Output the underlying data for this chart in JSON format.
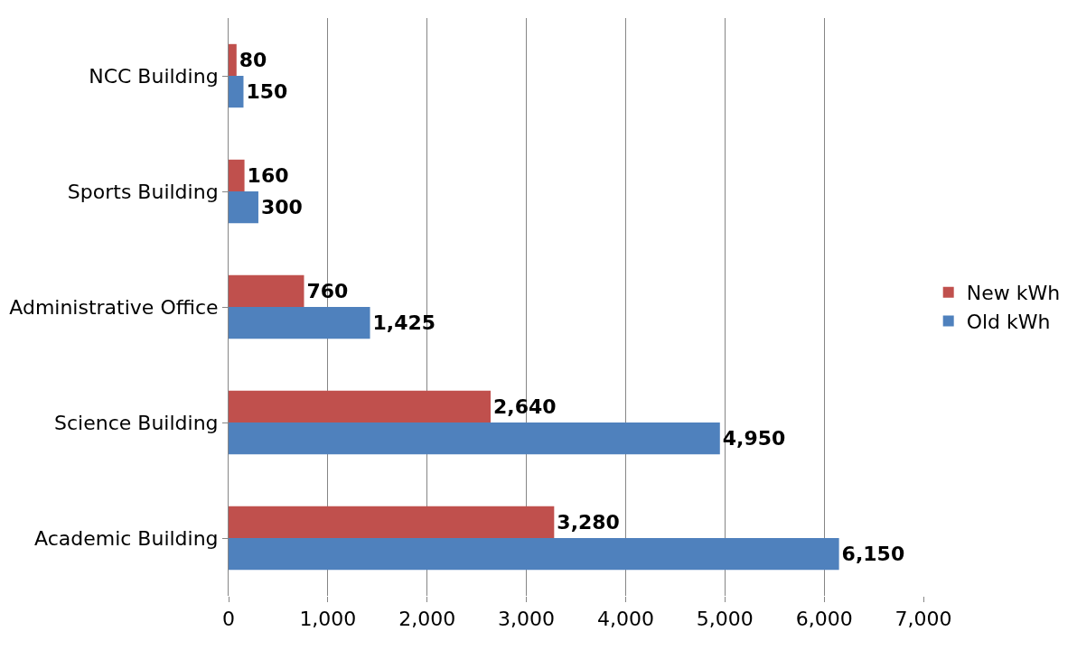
{
  "chart_data": {
    "type": "bar",
    "orientation": "horizontal",
    "categories": [
      "NCC Building",
      "Sports Building",
      "Administrative Office",
      "Science Building",
      "Academic Building"
    ],
    "series": [
      {
        "name": "New kWh",
        "color": "#c0504d",
        "values": [
          80,
          160,
          760,
          2640,
          3280
        ],
        "value_labels": [
          "80",
          "160",
          "760",
          "2,640",
          "3,280"
        ]
      },
      {
        "name": "Old kWh",
        "color": "#4f81bd",
        "values": [
          150,
          300,
          1425,
          4950,
          6150
        ],
        "value_labels": [
          "150",
          "300",
          "1,425",
          "4,950",
          "6,150"
        ]
      }
    ],
    "xlim": [
      0,
      7000
    ],
    "xticks": [
      0,
      {
        "value": 1000,
        "label": "1,000"
      },
      {
        "value": 2000,
        "label": "2,000"
      },
      {
        "value": 3000,
        "label": "3,000"
      },
      {
        "value": 4000,
        "label": "4,000"
      },
      {
        "value": 5000,
        "label": "5,000"
      },
      {
        "value": 6000,
        "label": "6,000"
      },
      {
        "value": 7000,
        "label": "7,000"
      }
    ],
    "grid": "x",
    "legend": "right"
  }
}
